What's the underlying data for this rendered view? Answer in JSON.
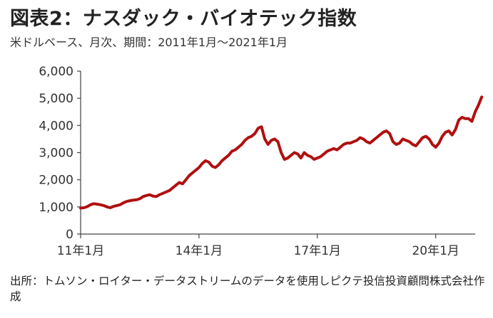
{
  "header": {
    "title": "図表2：ナスダック・バイオテック指数",
    "subtitle": "米ドルベース、月次、期間：2011年1月～2021年1月"
  },
  "footer": {
    "source": "出所：トムソン・ロイター・データストリームのデータを使用しピクテ投信投資顧問株式会社作成"
  },
  "chart_data": {
    "type": "line",
    "title": "図表2：ナスダック・バイオテック指数",
    "ylim": [
      0,
      6000
    ],
    "yticks": [
      "0",
      "1,000",
      "2,000",
      "3,000",
      "4,000",
      "5,000",
      "6,000"
    ],
    "xticks": [
      "11年1月",
      "14年1月",
      "17年1月",
      "20年1月"
    ],
    "xtick_month_index": [
      0,
      36,
      72,
      108
    ],
    "grid": false,
    "line_color": "#b01010",
    "series": [
      {
        "values": [
          960,
          970,
          1010,
          1080,
          1120,
          1100,
          1080,
          1050,
          1000,
          970,
          1020,
          1050,
          1080,
          1150,
          1200,
          1230,
          1250,
          1260,
          1300,
          1380,
          1420,
          1450,
          1400,
          1380,
          1450,
          1500,
          1550,
          1600,
          1700,
          1800,
          1900,
          1850,
          2000,
          2150,
          2250,
          2350,
          2450,
          2600,
          2700,
          2650,
          2500,
          2450,
          2550,
          2700,
          2800,
          2900,
          3050,
          3100,
          3200,
          3300,
          3450,
          3550,
          3600,
          3700,
          3900,
          3950,
          3500,
          3300,
          3450,
          3500,
          3400,
          3000,
          2750,
          2800,
          2900,
          3000,
          2950,
          2800,
          3000,
          2900,
          2850,
          2750,
          2800,
          2850,
          2950,
          3050,
          3100,
          3150,
          3100,
          3200,
          3300,
          3350,
          3350,
          3400,
          3450,
          3550,
          3500,
          3400,
          3350,
          3450,
          3550,
          3650,
          3750,
          3800,
          3700,
          3400,
          3300,
          3350,
          3500,
          3450,
          3400,
          3300,
          3250,
          3400,
          3550,
          3600,
          3500,
          3300,
          3200,
          3350,
          3600,
          3750,
          3800,
          3650,
          3850,
          4200,
          4300,
          4250,
          4250,
          4150,
          4500,
          4750,
          5050
        ]
      }
    ]
  }
}
